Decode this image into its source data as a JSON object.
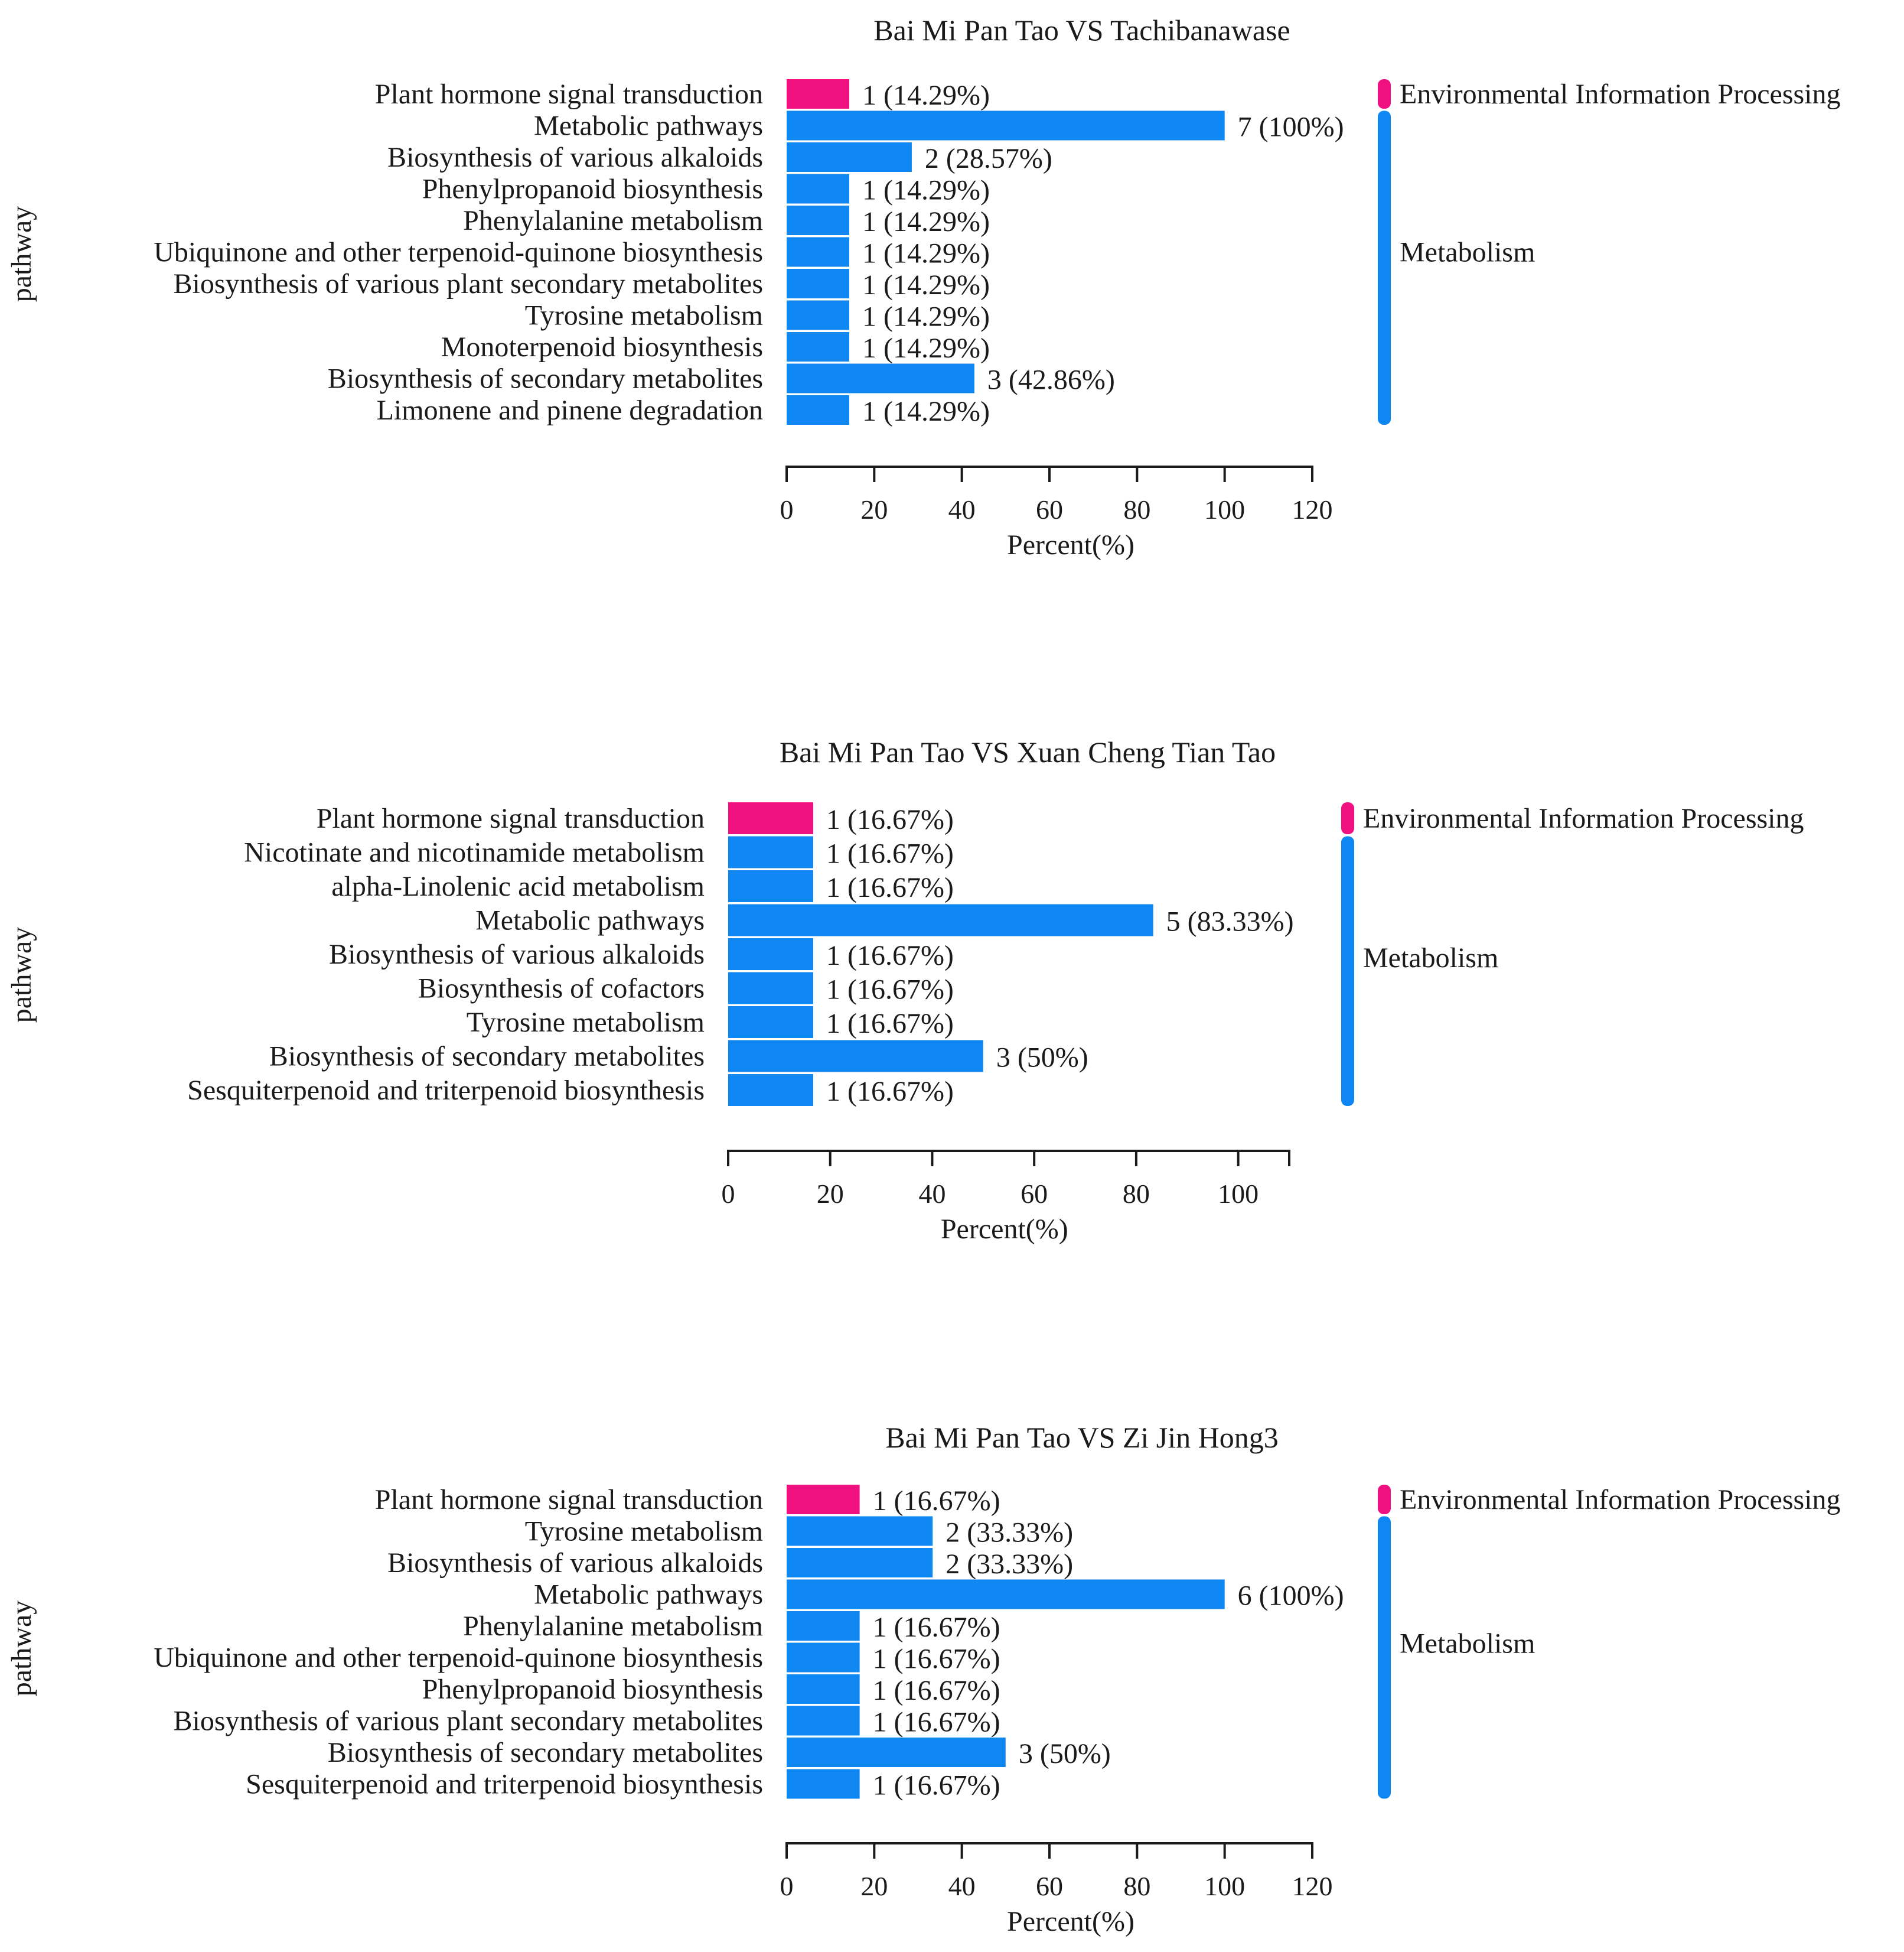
{
  "colors": {
    "environmental": "#f0107f",
    "metabolism": "#0f87f2",
    "axis": "#1a1a1a",
    "text": "#1a1a1a"
  },
  "chart_data": [
    {
      "type": "bar",
      "orientation": "horizontal",
      "title": "Bai Mi Pan Tao VS Tachibanawase",
      "xlabel": "Percent(%)",
      "ylabel": "pathway",
      "xlim": [
        0,
        120
      ],
      "xticks": [
        0,
        20,
        40,
        60,
        80,
        100,
        120
      ],
      "categories": [
        "Plant hormone signal transduction",
        "Metabolic pathways",
        "Biosynthesis of various alkaloids",
        "Phenylpropanoid biosynthesis",
        "Phenylalanine metabolism",
        "Ubiquinone and other terpenoid-quinone biosynthesis",
        "Biosynthesis of various plant secondary metabolites",
        "Tyrosine metabolism",
        "Monoterpenoid biosynthesis",
        "Biosynthesis of secondary metabolites",
        "Limonene and pinene degradation"
      ],
      "values": [
        14.29,
        100,
        28.57,
        14.29,
        14.29,
        14.29,
        14.29,
        14.29,
        14.29,
        42.86,
        14.29
      ],
      "labels": [
        "1 (14.29%)",
        "7 (100%)",
        "2 (28.57%)",
        "1 (14.29%)",
        "1 (14.29%)",
        "1 (14.29%)",
        "1 (14.29%)",
        "1 (14.29%)",
        "1 (14.29%)",
        "3 (42.86%)",
        "1 (14.29%)"
      ],
      "groups": [
        {
          "name": "Environmental Information Processing",
          "color": "environmental",
          "count": 1
        },
        {
          "name": "Metabolism",
          "color": "metabolism",
          "count": 10
        }
      ]
    },
    {
      "type": "bar",
      "orientation": "horizontal",
      "title": "Bai Mi Pan Tao VS Xuan Cheng Tian Tao",
      "xlabel": "Percent(%)",
      "ylabel": "pathway",
      "xlim": [
        0,
        110
      ],
      "xticks": [
        0,
        20,
        40,
        60,
        80,
        100
      ],
      "categories": [
        "Plant hormone signal transduction",
        "Nicotinate and nicotinamide metabolism",
        "alpha-Linolenic acid metabolism",
        "Metabolic pathways",
        "Biosynthesis of various alkaloids",
        "Biosynthesis of cofactors",
        "Tyrosine metabolism",
        "Biosynthesis of secondary metabolites",
        "Sesquiterpenoid and triterpenoid biosynthesis"
      ],
      "values": [
        16.67,
        16.67,
        16.67,
        83.33,
        16.67,
        16.67,
        16.67,
        50,
        16.67
      ],
      "labels": [
        "1 (16.67%)",
        "1 (16.67%)",
        "1 (16.67%)",
        "5 (83.33%)",
        "1 (16.67%)",
        "1 (16.67%)",
        "1 (16.67%)",
        "3 (50%)",
        "1 (16.67%)"
      ],
      "groups": [
        {
          "name": "Environmental Information Processing",
          "color": "environmental",
          "count": 1
        },
        {
          "name": "Metabolism",
          "color": "metabolism",
          "count": 8
        }
      ]
    },
    {
      "type": "bar",
      "orientation": "horizontal",
      "title": "Bai Mi Pan Tao VS Zi Jin Hong3",
      "xlabel": "Percent(%)",
      "ylabel": "pathway",
      "xlim": [
        0,
        120
      ],
      "xticks": [
        0,
        20,
        40,
        60,
        80,
        100,
        120
      ],
      "categories": [
        "Plant hormone signal transduction",
        "Tyrosine metabolism",
        "Biosynthesis of various alkaloids",
        "Metabolic pathways",
        "Phenylalanine metabolism",
        "Ubiquinone and other terpenoid-quinone biosynthesis",
        "Phenylpropanoid biosynthesis",
        "Biosynthesis of various plant secondary metabolites",
        "Biosynthesis of secondary metabolites",
        "Sesquiterpenoid and triterpenoid biosynthesis"
      ],
      "values": [
        16.67,
        33.33,
        33.33,
        100,
        16.67,
        16.67,
        16.67,
        16.67,
        50,
        16.67
      ],
      "labels": [
        "1 (16.67%)",
        "2 (33.33%)",
        "2 (33.33%)",
        "6 (100%)",
        "1 (16.67%)",
        "1 (16.67%)",
        "1 (16.67%)",
        "1 (16.67%)",
        "3 (50%)",
        "1 (16.67%)"
      ],
      "groups": [
        {
          "name": "Environmental Information Processing",
          "color": "environmental",
          "count": 1
        },
        {
          "name": "Metabolism",
          "color": "metabolism",
          "count": 9
        }
      ]
    }
  ]
}
